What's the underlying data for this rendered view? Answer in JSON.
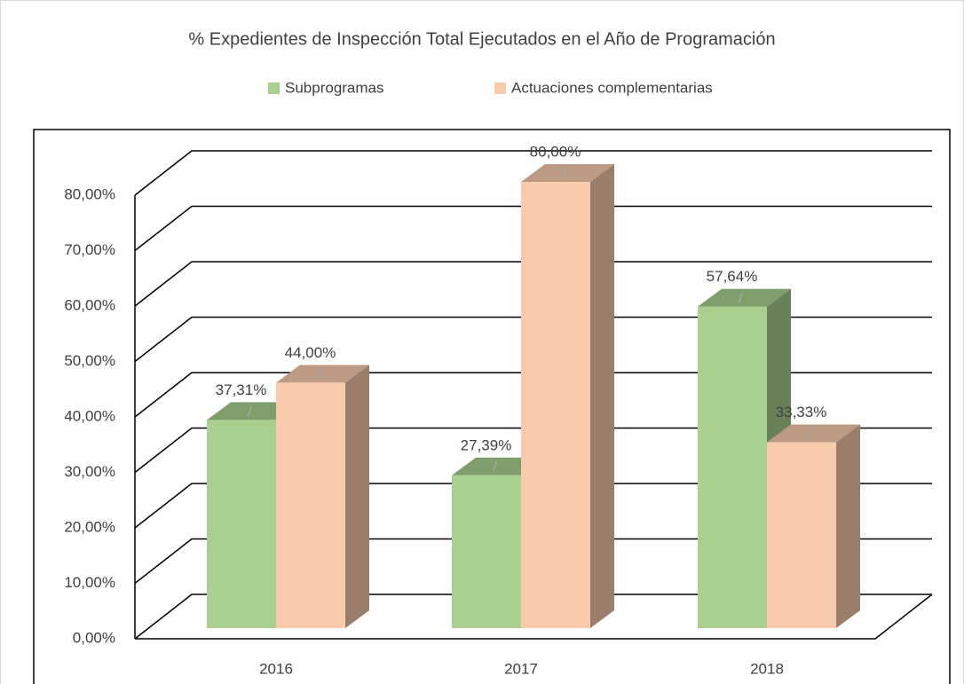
{
  "chart_data": {
    "type": "bar3d",
    "title": "% Expedientes de Inspección Total Ejecutados en el Año de Programación",
    "categories": [
      "2016",
      "2017",
      "2018"
    ],
    "series": [
      {
        "name": "Subprogramas",
        "color": "#a9d08e",
        "values": [
          37.31,
          27.39,
          57.64
        ],
        "value_labels": [
          "37,31%",
          "27,39%",
          "57,64%"
        ]
      },
      {
        "name": "Actuaciones complementarias",
        "color": "#f8cbad",
        "values": [
          44.0,
          80.0,
          33.33
        ],
        "value_labels": [
          "44,00%",
          "80,00%",
          "33,33%"
        ]
      }
    ],
    "ylim": [
      0,
      80
    ],
    "yticks": [
      {
        "value": 0,
        "label": "0,00%"
      },
      {
        "value": 10,
        "label": "10,00%"
      },
      {
        "value": 20,
        "label": "20,00%"
      },
      {
        "value": 30,
        "label": "30,00%"
      },
      {
        "value": 40,
        "label": "40,00%"
      },
      {
        "value": 50,
        "label": "50,00%"
      },
      {
        "value": 60,
        "label": "60,00%"
      },
      {
        "value": 70,
        "label": "70,00%"
      },
      {
        "value": 80,
        "label": "80,00%"
      }
    ],
    "grid": true
  }
}
